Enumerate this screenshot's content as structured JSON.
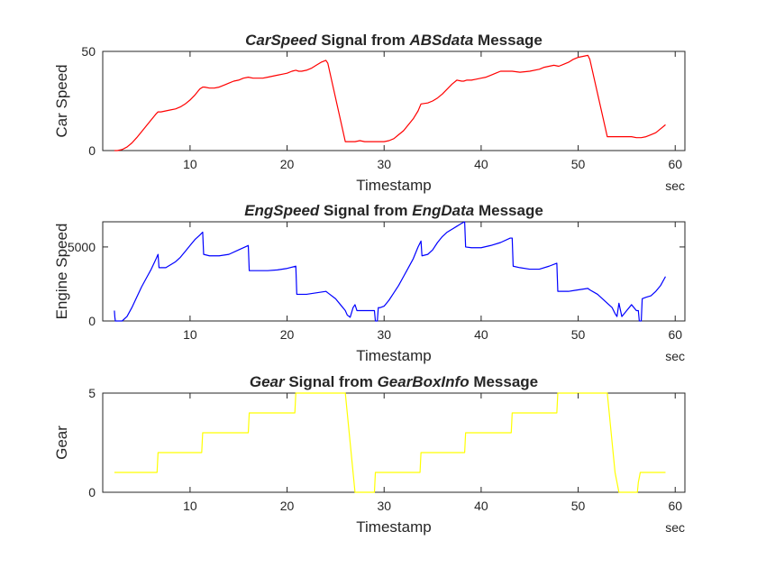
{
  "chart_data": [
    {
      "type": "line",
      "title_parts": [
        {
          "text": "CarSpeed",
          "italic": true
        },
        {
          "text": " Signal from ",
          "italic": false
        },
        {
          "text": "ABSdata",
          "italic": true
        },
        {
          "text": " Message",
          "italic": false
        }
      ],
      "xlabel": "Timestamp",
      "xunit": "sec",
      "ylabel": "Car Speed",
      "xlim": [
        1,
        61
      ],
      "ylim": [
        0,
        50
      ],
      "xticks": [
        10,
        20,
        30,
        40,
        50,
        60
      ],
      "yticks": [
        0,
        50
      ],
      "grid": false,
      "series": [
        {
          "color": "#ff0000",
          "x": [
            2.2,
            2.5,
            3.0,
            3.5,
            4.0,
            4.5,
            5.0,
            5.5,
            6.0,
            6.5,
            6.7,
            7.0,
            7.5,
            8.0,
            8.5,
            9.0,
            9.5,
            10.0,
            10.5,
            11.0,
            11.3,
            11.5,
            12.0,
            12.5,
            13.0,
            13.5,
            14.0,
            14.5,
            15.0,
            15.5,
            16.0,
            16.5,
            17.0,
            17.5,
            18.0,
            18.5,
            19.0,
            19.5,
            20.0,
            20.5,
            20.9,
            21.2,
            21.5,
            22.0,
            22.5,
            23.0,
            23.5,
            24.0,
            24.2,
            26.0,
            26.5,
            27.0,
            27.5,
            28.0,
            29.0,
            30.0,
            30.5,
            31.0,
            31.5,
            32.0,
            32.5,
            33.0,
            33.5,
            33.8,
            34.5,
            35.0,
            35.5,
            36.0,
            36.5,
            37.0,
            37.5,
            38.0,
            38.2,
            38.5,
            39.0,
            39.5,
            40.0,
            40.5,
            41.0,
            41.5,
            42.0,
            42.5,
            43.0,
            43.2,
            44.0,
            45.0,
            46.0,
            46.5,
            47.0,
            47.5,
            48.0,
            48.5,
            49.0,
            49.5,
            50.0,
            50.5,
            51.0,
            51.2,
            53.0,
            54.0,
            55.0,
            55.5,
            56.0,
            56.5,
            57.0,
            57.5,
            58.0,
            58.5,
            59.0
          ],
          "y": [
            0,
            0,
            0.5,
            1.8,
            3.8,
            6.5,
            9.5,
            12.5,
            15.5,
            18.5,
            19.5,
            19.5,
            20,
            20.5,
            21,
            22,
            23.5,
            25.5,
            28,
            31,
            32,
            32,
            31.5,
            31.5,
            32,
            33,
            34,
            35,
            35.5,
            36.5,
            37,
            36.5,
            36.5,
            36.5,
            37,
            37.5,
            38,
            38.5,
            39,
            40,
            40.5,
            40,
            40,
            40.5,
            41.5,
            43,
            44.5,
            45.5,
            44,
            4.5,
            4.5,
            4.5,
            5,
            4.5,
            4.5,
            4.5,
            5,
            6,
            8,
            10,
            13,
            16,
            20,
            23.5,
            24,
            25,
            26.5,
            28.5,
            31,
            33.5,
            35.5,
            35,
            35,
            35.5,
            35.5,
            36,
            36.5,
            37,
            38,
            39,
            40,
            40,
            40,
            40,
            39.5,
            40,
            41,
            42,
            42.5,
            43,
            42.5,
            43.5,
            44.5,
            46,
            47,
            47.5,
            48,
            46,
            7,
            7,
            7,
            7,
            6.5,
            6.5,
            7,
            8,
            9,
            11,
            13
          ]
        }
      ]
    },
    {
      "type": "line",
      "title_parts": [
        {
          "text": "EngSpeed",
          "italic": true
        },
        {
          "text": " Signal from ",
          "italic": false
        },
        {
          "text": "EngData",
          "italic": true
        },
        {
          "text": " Message",
          "italic": false
        }
      ],
      "xlabel": "Timestamp",
      "xunit": "sec",
      "ylabel": "Engine Speed",
      "xlim": [
        1,
        61
      ],
      "ylim": [
        0,
        6700
      ],
      "xticks": [
        10,
        20,
        30,
        40,
        50,
        60
      ],
      "yticks": [
        0,
        5000
      ],
      "grid": false,
      "series": [
        {
          "color": "#0000ff",
          "x": [
            2.2,
            2.25,
            2.3,
            3.0,
            3.5,
            4.0,
            4.5,
            5.0,
            5.5,
            6.0,
            6.5,
            6.7,
            6.8,
            7.5,
            8.0,
            8.5,
            9.0,
            9.5,
            10.0,
            10.5,
            11.0,
            11.3,
            11.4,
            12.0,
            13.0,
            14.0,
            15.0,
            16.0,
            16.1,
            17.0,
            18.0,
            19.0,
            20.0,
            20.9,
            21.0,
            22.0,
            23.0,
            24.0,
            24.2,
            25.0,
            25.5,
            26.0,
            26.2,
            26.5,
            26.8,
            27.0,
            27.2,
            28.0,
            29.0,
            29.1,
            29.3,
            29.4,
            29.6,
            30.0,
            30.5,
            31.0,
            31.5,
            32.0,
            32.5,
            33.0,
            33.5,
            33.8,
            33.9,
            34.5,
            35.0,
            35.5,
            36.0,
            36.5,
            37.0,
            37.5,
            38.0,
            38.3,
            38.4,
            39.0,
            40.0,
            41.0,
            42.0,
            43.0,
            43.2,
            43.3,
            44.0,
            45.0,
            46.0,
            47.0,
            47.8,
            47.9,
            49.0,
            50.0,
            51.0,
            51.2,
            52.0,
            53.0,
            53.5,
            53.8,
            54.0,
            54.2,
            54.5,
            55.0,
            55.5,
            56.0,
            56.2,
            56.3,
            56.5,
            56.6,
            57.0,
            57.5,
            58.0,
            58.5,
            59.0
          ],
          "y": [
            700,
            250,
            0,
            0,
            300,
            900,
            1600,
            2300,
            2900,
            3500,
            4200,
            4500,
            3600,
            3600,
            3800,
            4000,
            4300,
            4700,
            5100,
            5500,
            5800,
            6000,
            4500,
            4400,
            4400,
            4500,
            4800,
            5100,
            3400,
            3400,
            3400,
            3450,
            3550,
            3700,
            1800,
            1800,
            1900,
            2000,
            1900,
            1500,
            1100,
            700,
            400,
            250,
            900,
            1100,
            700,
            700,
            700,
            0,
            0,
            900,
            900,
            1000,
            1400,
            1900,
            2400,
            3000,
            3600,
            4200,
            5000,
            5400,
            4400,
            4500,
            4800,
            5300,
            5700,
            6000,
            6200,
            6400,
            6600,
            6700,
            5000,
            4950,
            4950,
            5100,
            5300,
            5600,
            5600,
            3700,
            3600,
            3500,
            3500,
            3700,
            3900,
            2000,
            2000,
            2100,
            2200,
            2100,
            1800,
            1200,
            900,
            500,
            300,
            1200,
            300,
            700,
            1100,
            700,
            700,
            0,
            0,
            1500,
            1600,
            1700,
            2000,
            2400,
            3000
          ]
        }
      ]
    },
    {
      "type": "line",
      "title_parts": [
        {
          "text": "Gear",
          "italic": true
        },
        {
          "text": " Signal from ",
          "italic": false
        },
        {
          "text": "GearBoxInfo",
          "italic": true
        },
        {
          "text": " Message",
          "italic": false
        }
      ],
      "xlabel": "Timestamp",
      "xunit": "sec",
      "ylabel": "Gear",
      "xlim": [
        1,
        61
      ],
      "ylim": [
        0,
        5
      ],
      "xticks": [
        10,
        20,
        30,
        40,
        50,
        60
      ],
      "yticks": [
        0,
        5
      ],
      "grid": false,
      "series": [
        {
          "color": "#ffff00",
          "x": [
            2.2,
            6.6,
            6.7,
            11.2,
            11.3,
            16.0,
            16.1,
            20.8,
            20.9,
            26.0,
            26.2,
            26.4,
            26.6,
            26.8,
            27.0,
            29.0,
            29.1,
            33.7,
            33.8,
            38.3,
            38.4,
            43.1,
            43.2,
            47.8,
            47.9,
            53.0,
            53.2,
            53.4,
            53.6,
            53.8,
            54.2,
            56.1,
            56.2,
            56.4,
            59.0
          ],
          "y": [
            1,
            1,
            2,
            2,
            3,
            3,
            4,
            4,
            5,
            5,
            4,
            3,
            2,
            1,
            0,
            0,
            1,
            1,
            2,
            2,
            3,
            3,
            4,
            4,
            5,
            5,
            4,
            3,
            2,
            1,
            0,
            0,
            0.5,
            1,
            1
          ]
        }
      ]
    }
  ]
}
